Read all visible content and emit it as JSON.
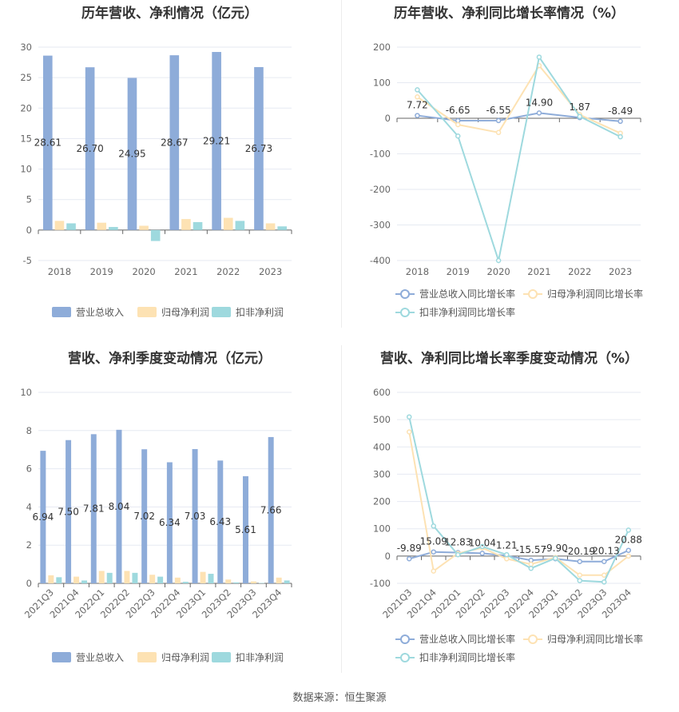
{
  "colors": {
    "revenue": "#8eacd9",
    "net_profit": "#fde2b3",
    "deducted_profit": "#9ed9de",
    "revenue_growth": "#8eacd9",
    "net_growth": "#fde2b3",
    "deducted_growth": "#9ed9de",
    "grid": "#e6eaf2",
    "axis": "#666666"
  },
  "source": "数据来源：恒生聚源",
  "chart_data": [
    {
      "id": "annual",
      "type": "bar",
      "title": "历年营收、净利情况（亿元）",
      "categories": [
        "2018",
        "2019",
        "2020",
        "2021",
        "2022",
        "2023"
      ],
      "ylim": [
        -5,
        30
      ],
      "yticks": [
        -5,
        0,
        5,
        10,
        15,
        20,
        25,
        30
      ],
      "grid": true,
      "legend_position": "bottom",
      "series": [
        {
          "name": "营业总收入",
          "values": [
            28.61,
            26.7,
            24.95,
            28.67,
            29.21,
            26.73
          ],
          "color": "#8eacd9",
          "labels": [
            "28.61",
            "26.70",
            "24.95",
            "28.67",
            "29.21",
            "26.73"
          ]
        },
        {
          "name": "归母净利润",
          "values": [
            1.5,
            1.2,
            0.7,
            1.8,
            2.0,
            1.1
          ],
          "color": "#fde2b3"
        },
        {
          "name": "扣非净利润",
          "values": [
            1.1,
            0.5,
            -1.8,
            1.3,
            1.5,
            0.6
          ],
          "color": "#9ed9de"
        }
      ]
    },
    {
      "id": "annual-growth",
      "type": "line",
      "title": "历年营收、净利同比增长率情况（%）",
      "categories": [
        "2018",
        "2019",
        "2020",
        "2021",
        "2022",
        "2023"
      ],
      "ylim": [
        -400,
        200
      ],
      "yticks": [
        -400,
        -300,
        -200,
        -100,
        0,
        100,
        200
      ],
      "grid": true,
      "legend_position": "bottom",
      "series": [
        {
          "name": "营业总收入同比增长率",
          "values": [
            7.72,
            -6.65,
            -6.55,
            14.9,
            1.87,
            -8.49
          ],
          "color": "#8eacd9",
          "labels": [
            "7.72",
            "-6.65",
            "-6.55",
            "14.90",
            "1.87",
            "-8.49"
          ]
        },
        {
          "name": "归母净利润同比增长率",
          "values": [
            60,
            -18,
            -40,
            148,
            10,
            -42
          ],
          "color": "#fde2b3"
        },
        {
          "name": "扣非净利润同比增长率",
          "values": [
            80,
            -50,
            -400,
            172,
            5,
            -52
          ],
          "color": "#9ed9de"
        }
      ]
    },
    {
      "id": "quarterly",
      "type": "bar",
      "title": "营收、净利季度变动情况（亿元）",
      "categories": [
        "2021Q3",
        "2021Q4",
        "2022Q1",
        "2022Q2",
        "2022Q3",
        "2022Q4",
        "2023Q1",
        "2023Q2",
        "2023Q3",
        "2023Q4"
      ],
      "ylim": [
        0,
        10
      ],
      "yticks": [
        0,
        2,
        4,
        6,
        8,
        10
      ],
      "grid": true,
      "legend_position": "bottom",
      "series": [
        {
          "name": "营业总收入",
          "values": [
            6.94,
            7.5,
            7.81,
            8.04,
            7.02,
            6.34,
            7.03,
            6.43,
            5.61,
            7.66
          ],
          "color": "#8eacd9",
          "labels": [
            "6.94",
            "7.50",
            "7.81",
            "8.04",
            "7.02",
            "6.34",
            "7.03",
            "6.43",
            "5.61",
            "7.66"
          ]
        },
        {
          "name": "归母净利润",
          "values": [
            0.42,
            0.35,
            0.65,
            0.65,
            0.45,
            0.3,
            0.6,
            0.2,
            0.1,
            0.3
          ],
          "color": "#fde2b3"
        },
        {
          "name": "扣非净利润",
          "values": [
            0.32,
            0.15,
            0.55,
            0.55,
            0.35,
            0.08,
            0.5,
            0.05,
            0.02,
            0.15
          ],
          "color": "#9ed9de"
        }
      ]
    },
    {
      "id": "quarterly-growth",
      "type": "line",
      "title": "营收、净利同比增长率季度变动情况（%）",
      "categories": [
        "2021Q3",
        "2021Q4",
        "2022Q1",
        "2022Q2",
        "2022Q3",
        "2022Q4",
        "2023Q1",
        "2023Q2",
        "2023Q3",
        "2023Q4"
      ],
      "ylim": [
        -100,
        600
      ],
      "yticks": [
        -100,
        0,
        100,
        200,
        300,
        400,
        500,
        600
      ],
      "grid": true,
      "legend_position": "bottom",
      "series": [
        {
          "name": "营业总收入同比增长率",
          "values": [
            -9.89,
            15.09,
            12.83,
            10.04,
            1.21,
            -15.57,
            -9.9,
            -20.19,
            -20.13,
            20.88
          ],
          "color": "#8eacd9",
          "labels": [
            "-9.89",
            "15.09",
            "12.83",
            "10.04",
            "1.21",
            "-15.57",
            "-9.90",
            "-20.19",
            "-20.13",
            "20.88"
          ]
        },
        {
          "name": "归母净利润同比增长率",
          "values": [
            455,
            -55,
            10,
            30,
            -10,
            -30,
            -5,
            -70,
            -70,
            0
          ],
          "color": "#fde2b3"
        },
        {
          "name": "扣非净利润同比增长率",
          "values": [
            510,
            110,
            5,
            35,
            5,
            -45,
            -8,
            -90,
            -95,
            95
          ],
          "color": "#9ed9de"
        }
      ]
    }
  ]
}
